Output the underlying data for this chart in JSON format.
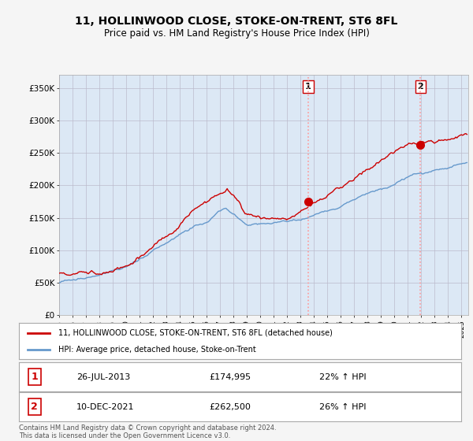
{
  "title": "11, HOLLINWOOD CLOSE, STOKE-ON-TRENT, ST6 8FL",
  "subtitle": "Price paid vs. HM Land Registry's House Price Index (HPI)",
  "ylabel_ticks": [
    "£0",
    "£50K",
    "£100K",
    "£150K",
    "£200K",
    "£250K",
    "£300K",
    "£350K"
  ],
  "ytick_vals": [
    0,
    50000,
    100000,
    150000,
    200000,
    250000,
    300000,
    350000
  ],
  "ylim": [
    0,
    370000
  ],
  "xlim_start": 1995.0,
  "xlim_end": 2025.5,
  "xtick_years": [
    1995,
    1996,
    1997,
    1998,
    1999,
    2000,
    2001,
    2002,
    2003,
    2004,
    2005,
    2006,
    2007,
    2008,
    2009,
    2010,
    2011,
    2012,
    2013,
    2014,
    2015,
    2016,
    2017,
    2018,
    2019,
    2020,
    2021,
    2022,
    2023,
    2024,
    2025
  ],
  "purchase1_x": 2013.57,
  "purchase1_y": 174995,
  "purchase1_label": "1",
  "purchase1_date": "26-JUL-2013",
  "purchase1_price": "£174,995",
  "purchase1_hpi": "22% ↑ HPI",
  "purchase2_x": 2021.94,
  "purchase2_y": 262500,
  "purchase2_label": "2",
  "purchase2_date": "10-DEC-2021",
  "purchase2_price": "£262,500",
  "purchase2_hpi": "26% ↑ HPI",
  "line_color_property": "#cc0000",
  "line_color_hpi": "#6699cc",
  "vline_color": "#ff9999",
  "dot_color": "#cc0000",
  "legend_label_property": "11, HOLLINWOOD CLOSE, STOKE-ON-TRENT, ST6 8FL (detached house)",
  "legend_label_hpi": "HPI: Average price, detached house, Stoke-on-Trent",
  "footnote": "Contains HM Land Registry data © Crown copyright and database right 2024.\nThis data is licensed under the Open Government Licence v3.0.",
  "plot_bg_color": "#dce8f5",
  "grid_color": "#bbbbcc",
  "shade_color": "#dce8f5"
}
